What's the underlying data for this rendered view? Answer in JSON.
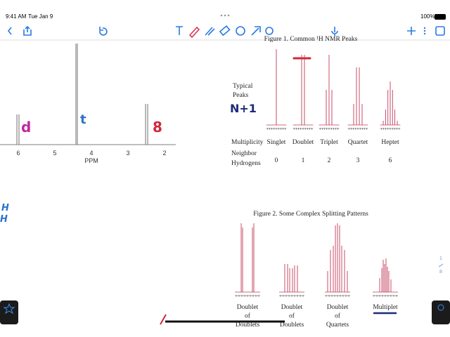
{
  "status_bar": {
    "time": "9:41 AM",
    "date": "Tue Jan 9",
    "battery": "100%"
  },
  "spectrum": {
    "axis_ticks": [
      "6",
      "5",
      "4",
      "3",
      "2"
    ],
    "axis_label": "PPM"
  },
  "annotations": {
    "doublet": "d",
    "triplet": "t",
    "singlet": "8",
    "rule": "N+1",
    "h_lines": [
      "H",
      "H"
    ]
  },
  "figure1": {
    "title": "Figure 1.  Common ¹H NMR Peaks",
    "row_label": [
      "Typical",
      "Peaks"
    ],
    "multiplicity_label": "Multiplicity",
    "neighbor_label": [
      "Neighbor",
      "Hydrogens"
    ],
    "multiplicities": [
      "Singlet",
      "Doublet",
      "Triplet",
      "Quartet",
      "Heptet"
    ],
    "neighbors": [
      "0",
      "1",
      "2",
      "3",
      "6"
    ]
  },
  "figure2": {
    "title": "Figure 2.  Some Complex Splitting Patterns",
    "patterns": [
      [
        "Doublet",
        "of",
        "Doublets"
      ],
      [
        "Doublet",
        "of",
        "Doublets"
      ],
      [
        "Doublet",
        "of",
        "Quartets"
      ],
      [
        "Multiplet"
      ]
    ]
  },
  "page_indicator": {
    "current": "1",
    "total": "8"
  }
}
